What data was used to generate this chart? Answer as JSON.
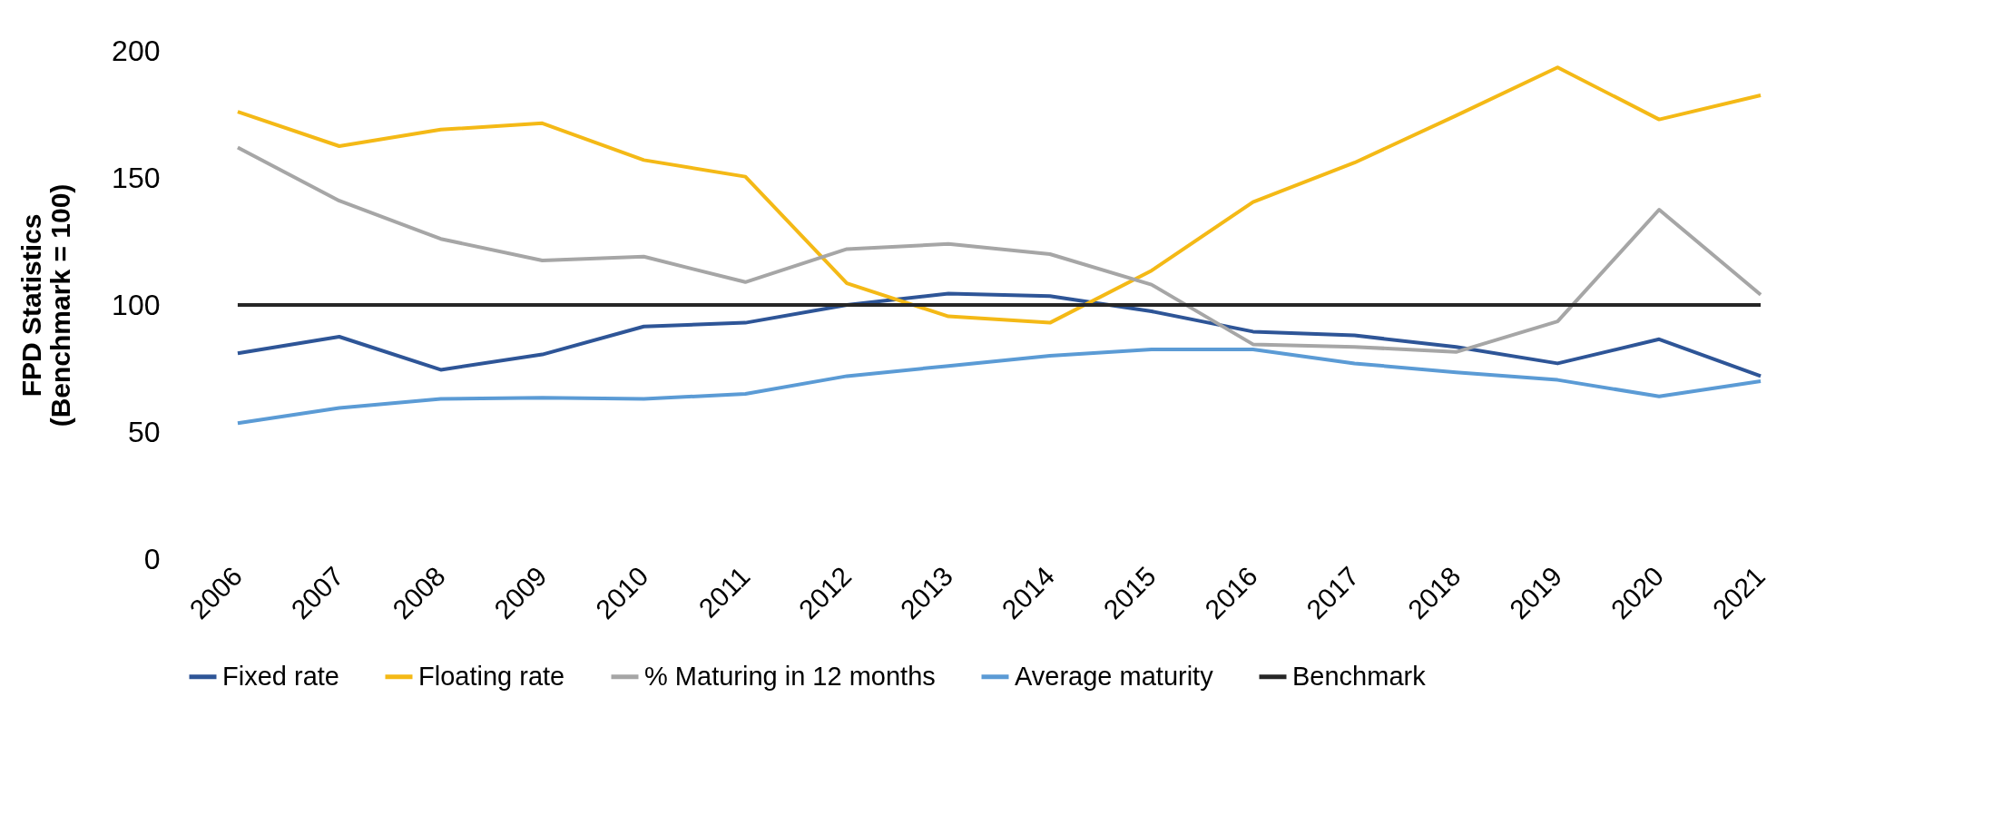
{
  "chart_data": {
    "type": "line",
    "ylabel": "FPD Statistics\n(Benchmark = 100)",
    "categories": [
      "2006",
      "2007",
      "2008",
      "2009",
      "2010",
      "2011",
      "2012",
      "2013",
      "2014",
      "2015",
      "2016",
      "2017",
      "2018",
      "2019",
      "2020",
      "2021"
    ],
    "ylim": [
      0,
      200
    ],
    "yticks": [
      0,
      50,
      100,
      150,
      200
    ],
    "legend": "bottom",
    "series": [
      {
        "name": "Fixed rate",
        "color": "#2e5597",
        "values": [
          81,
          87.5,
          74.5,
          80.5,
          91.5,
          93,
          100,
          104.5,
          103.5,
          97.5,
          89.5,
          88,
          83.5,
          77,
          86.5,
          72
        ]
      },
      {
        "name": "Floating rate",
        "color": "#f4b916",
        "values": [
          176,
          162.5,
          169,
          171.5,
          157,
          150.5,
          108.5,
          95.5,
          93,
          113.5,
          140.5,
          156,
          174.5,
          193.5,
          173,
          182.5
        ]
      },
      {
        "name": "% Maturing in 12 months",
        "color": "#a6a6a6",
        "values": [
          162,
          141,
          126,
          117.5,
          119,
          109,
          122,
          124,
          120,
          108,
          84.5,
          83.5,
          81.5,
          93.5,
          137.5,
          104
        ]
      },
      {
        "name": "Average maturity",
        "color": "#5b9bd5",
        "values": [
          53.5,
          59.5,
          63,
          63.5,
          63,
          65,
          72,
          76,
          80,
          82.5,
          82.5,
          77,
          73.5,
          70.5,
          64,
          70
        ]
      },
      {
        "name": "Benchmark",
        "color": "#262626",
        "values": [
          100,
          100,
          100,
          100,
          100,
          100,
          100,
          100,
          100,
          100,
          100,
          100,
          100,
          100,
          100,
          100
        ]
      }
    ]
  }
}
